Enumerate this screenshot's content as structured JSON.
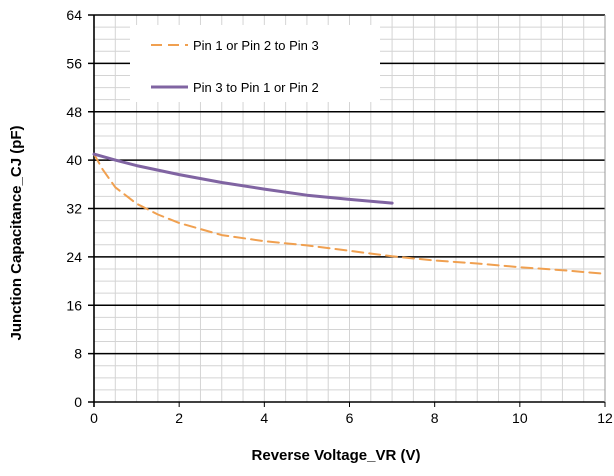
{
  "chart_data": {
    "type": "line",
    "title": "",
    "xlabel": "Reverse Voltage_VR (V)",
    "ylabel": "Junction Capacitance_CJ (pF)",
    "xlim": [
      0,
      12
    ],
    "ylim": [
      0,
      64
    ],
    "x_ticks": [
      0,
      2,
      4,
      6,
      8,
      10,
      12
    ],
    "y_ticks": [
      0,
      8,
      16,
      24,
      32,
      40,
      48,
      56,
      64
    ],
    "x_minor_step": 0.5,
    "y_minor_step": 2,
    "grid": true,
    "legend_position": "top-left",
    "colors": {
      "orange": "#F0A050",
      "purple": "#8064A2",
      "major_grid": "#000000",
      "minor_grid": "#D4D4D4"
    },
    "series": [
      {
        "name": "Pin 1 or Pin 2 to Pin 3",
        "style": "dashed",
        "color": "#F0A050",
        "x": [
          0,
          0.2,
          0.5,
          1,
          1.5,
          2,
          3,
          4,
          5,
          6,
          7,
          8,
          9,
          10,
          11,
          12
        ],
        "y": [
          41,
          38.5,
          35.5,
          32.8,
          31,
          29.6,
          27.6,
          26.6,
          25.9,
          25,
          24.1,
          23.4,
          22.9,
          22.3,
          21.8,
          21.2
        ]
      },
      {
        "name": "Pin 3 to Pin 1 or Pin 2",
        "style": "solid",
        "color": "#8064A2",
        "x": [
          0,
          0.5,
          1,
          2,
          3,
          4,
          5,
          6,
          7
        ],
        "y": [
          41,
          40,
          39.1,
          37.6,
          36.3,
          35.2,
          34.2,
          33.5,
          32.9
        ]
      }
    ]
  }
}
